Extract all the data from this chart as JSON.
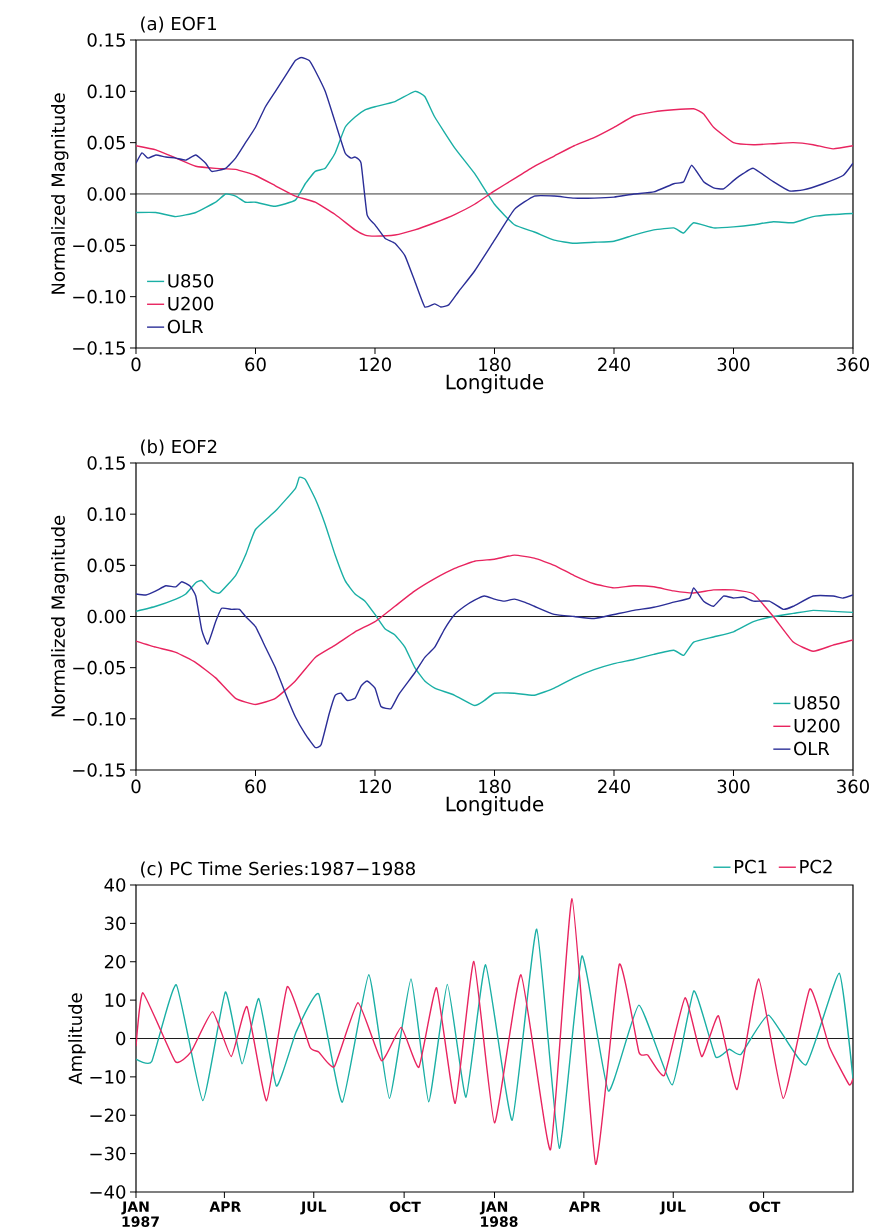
{
  "chart_data": [
    {
      "type": "line",
      "title": "(a) EOF1",
      "xlabel": "Longitude",
      "ylabel": "Normalized Magnitude",
      "xlim": [
        0,
        360
      ],
      "xticks": [
        0,
        60,
        120,
        180,
        240,
        300,
        360
      ],
      "ylim": [
        -0.15,
        0.15
      ],
      "yticks": [
        {
          "value": -0.15,
          "label": "−0.15"
        },
        {
          "value": -0.1,
          "label": "−0.10"
        },
        {
          "value": -0.05,
          "label": "−0.05"
        },
        {
          "value": 0,
          "label": "0.00"
        },
        {
          "value": 0.05,
          "label": "0.05"
        },
        {
          "value": 0.1,
          "label": "0.10"
        },
        {
          "value": 0.15,
          "label": "0.15"
        }
      ],
      "legend": "bottom left",
      "ref_lines": [
        {
          "axis": "y",
          "value": 0,
          "color": "#000000"
        }
      ],
      "series": [
        {
          "name": "U850",
          "color": "#1aafa5",
          "x": [
            0,
            10,
            20,
            30,
            40,
            45,
            50,
            55,
            60,
            70,
            80,
            85,
            90,
            95,
            100,
            105,
            110,
            115,
            120,
            130,
            140,
            145,
            150,
            160,
            170,
            180,
            190,
            200,
            210,
            220,
            230,
            240,
            250,
            260,
            270,
            275,
            280,
            290,
            300,
            310,
            320,
            330,
            340,
            350,
            360
          ],
          "values": [
            -0.018,
            -0.018,
            -0.022,
            -0.018,
            -0.008,
            0.0,
            -0.002,
            -0.008,
            -0.008,
            -0.012,
            -0.006,
            0.01,
            0.022,
            0.025,
            0.04,
            0.065,
            0.075,
            0.082,
            0.085,
            0.09,
            0.1,
            0.095,
            0.075,
            0.045,
            0.02,
            -0.01,
            -0.03,
            -0.037,
            -0.045,
            -0.048,
            -0.047,
            -0.046,
            -0.04,
            -0.035,
            -0.033,
            -0.038,
            -0.028,
            -0.033,
            -0.032,
            -0.03,
            -0.027,
            -0.028,
            -0.022,
            -0.02,
            -0.019
          ]
        },
        {
          "name": "U200",
          "color": "#e8245f",
          "x": [
            0,
            10,
            20,
            30,
            40,
            50,
            60,
            70,
            80,
            90,
            100,
            110,
            115,
            120,
            130,
            140,
            150,
            160,
            170,
            180,
            190,
            200,
            210,
            220,
            230,
            240,
            250,
            260,
            270,
            280,
            285,
            290,
            300,
            310,
            320,
            330,
            340,
            350,
            360
          ],
          "values": [
            0.047,
            0.043,
            0.035,
            0.027,
            0.025,
            0.024,
            0.018,
            0.008,
            -0.002,
            -0.008,
            -0.02,
            -0.035,
            -0.04,
            -0.041,
            -0.04,
            -0.035,
            -0.028,
            -0.02,
            -0.01,
            0.003,
            0.015,
            0.027,
            0.037,
            0.047,
            0.055,
            0.065,
            0.076,
            0.08,
            0.082,
            0.083,
            0.078,
            0.065,
            0.05,
            0.048,
            0.049,
            0.05,
            0.048,
            0.044,
            0.047
          ]
        },
        {
          "name": "OLR",
          "color": "#2b2e97",
          "x": [
            0,
            3,
            6,
            10,
            15,
            20,
            25,
            30,
            35,
            38,
            45,
            50,
            55,
            60,
            65,
            70,
            75,
            80,
            83,
            87,
            90,
            95,
            100,
            105,
            108,
            110,
            113,
            116,
            120,
            125,
            130,
            135,
            140,
            145,
            150,
            153,
            157,
            162,
            170,
            180,
            190,
            200,
            210,
            220,
            230,
            240,
            250,
            260,
            270,
            275,
            279,
            285,
            290,
            295,
            300,
            305,
            310,
            320,
            328,
            335,
            345,
            355,
            360
          ],
          "values": [
            0.03,
            0.04,
            0.035,
            0.038,
            0.036,
            0.035,
            0.033,
            0.038,
            0.03,
            0.022,
            0.025,
            0.035,
            0.05,
            0.065,
            0.085,
            0.1,
            0.115,
            0.13,
            0.133,
            0.13,
            0.12,
            0.1,
            0.07,
            0.04,
            0.035,
            0.036,
            0.03,
            -0.02,
            -0.03,
            -0.043,
            -0.048,
            -0.06,
            -0.085,
            -0.11,
            -0.107,
            -0.11,
            -0.108,
            -0.095,
            -0.075,
            -0.045,
            -0.015,
            -0.002,
            -0.002,
            -0.004,
            -0.004,
            -0.003,
            0.0,
            0.002,
            0.01,
            0.012,
            0.028,
            0.012,
            0.006,
            0.005,
            0.013,
            0.02,
            0.025,
            0.012,
            0.003,
            0.004,
            0.01,
            0.018,
            0.03
          ]
        }
      ]
    },
    {
      "type": "line",
      "title": "(b) EOF2",
      "xlabel": "Longitude",
      "ylabel": "Normalized Magnitude",
      "xlim": [
        0,
        360
      ],
      "xticks": [
        0,
        60,
        120,
        180,
        240,
        300,
        360
      ],
      "ylim": [
        -0.15,
        0.15
      ],
      "yticks": [
        {
          "value": -0.15,
          "label": "−0.15"
        },
        {
          "value": -0.1,
          "label": "−0.10"
        },
        {
          "value": -0.05,
          "label": "−0.05"
        },
        {
          "value": 0,
          "label": "0.00"
        },
        {
          "value": 0.05,
          "label": "0.05"
        },
        {
          "value": 0.1,
          "label": "0.10"
        },
        {
          "value": 0.15,
          "label": "0.15"
        }
      ],
      "legend": "bottom right",
      "ref_lines": [
        {
          "axis": "y",
          "value": 0,
          "color": "#000000"
        }
      ],
      "series": [
        {
          "name": "U850",
          "color": "#1aafa5",
          "x": [
            0,
            10,
            20,
            25,
            30,
            33,
            38,
            42,
            50,
            55,
            60,
            70,
            80,
            82,
            85,
            90,
            95,
            100,
            105,
            110,
            115,
            120,
            125,
            130,
            135,
            140,
            145,
            150,
            160,
            170,
            175,
            180,
            190,
            200,
            210,
            220,
            230,
            240,
            250,
            260,
            270,
            275,
            280,
            290,
            300,
            310,
            320,
            330,
            340,
            350,
            360
          ],
          "values": [
            0.005,
            0.01,
            0.017,
            0.022,
            0.033,
            0.035,
            0.025,
            0.023,
            0.04,
            0.06,
            0.085,
            0.103,
            0.125,
            0.136,
            0.134,
            0.115,
            0.09,
            0.06,
            0.035,
            0.022,
            0.015,
            0.002,
            -0.012,
            -0.018,
            -0.03,
            -0.05,
            -0.063,
            -0.07,
            -0.077,
            -0.087,
            -0.082,
            -0.075,
            -0.075,
            -0.077,
            -0.07,
            -0.06,
            -0.052,
            -0.046,
            -0.042,
            -0.037,
            -0.033,
            -0.038,
            -0.025,
            -0.02,
            -0.015,
            -0.005,
            0.0,
            0.003,
            0.006,
            0.005,
            0.004
          ]
        },
        {
          "name": "U200",
          "color": "#e8245f",
          "x": [
            0,
            10,
            20,
            30,
            40,
            50,
            60,
            70,
            80,
            90,
            100,
            110,
            120,
            130,
            140,
            150,
            160,
            170,
            180,
            190,
            200,
            210,
            220,
            230,
            240,
            250,
            260,
            270,
            280,
            290,
            300,
            310,
            320,
            330,
            340,
            350,
            360
          ],
          "values": [
            -0.024,
            -0.03,
            -0.035,
            -0.045,
            -0.06,
            -0.08,
            -0.086,
            -0.08,
            -0.063,
            -0.04,
            -0.028,
            -0.015,
            -0.005,
            0.01,
            0.025,
            0.037,
            0.047,
            0.054,
            0.056,
            0.06,
            0.057,
            0.05,
            0.04,
            0.032,
            0.028,
            0.03,
            0.029,
            0.025,
            0.023,
            0.026,
            0.026,
            0.022,
            0.0,
            -0.025,
            -0.034,
            -0.028,
            -0.023
          ]
        },
        {
          "name": "OLR",
          "color": "#2b2e97",
          "x": [
            0,
            5,
            10,
            15,
            20,
            23,
            27,
            30,
            33,
            36,
            40,
            43,
            48,
            52,
            55,
            60,
            65,
            70,
            75,
            80,
            85,
            90,
            93,
            97,
            100,
            103,
            106,
            110,
            113,
            116,
            120,
            123,
            128,
            132,
            140,
            145,
            150,
            155,
            160,
            165,
            170,
            175,
            180,
            185,
            190,
            195,
            200,
            210,
            220,
            230,
            240,
            250,
            260,
            270,
            278,
            280,
            285,
            290,
            295,
            300,
            305,
            310,
            318,
            325,
            330,
            340,
            350,
            355,
            360
          ],
          "values": [
            0.022,
            0.021,
            0.025,
            0.03,
            0.029,
            0.034,
            0.03,
            0.02,
            -0.013,
            -0.027,
            -0.005,
            0.008,
            0.007,
            0.007,
            0.0,
            -0.01,
            -0.03,
            -0.05,
            -0.075,
            -0.098,
            -0.115,
            -0.128,
            -0.125,
            -0.095,
            -0.077,
            -0.075,
            -0.082,
            -0.08,
            -0.068,
            -0.063,
            -0.07,
            -0.088,
            -0.09,
            -0.076,
            -0.055,
            -0.04,
            -0.03,
            -0.012,
            0.002,
            0.01,
            0.016,
            0.02,
            0.017,
            0.015,
            0.017,
            0.014,
            0.01,
            0.002,
            0.0,
            -0.002,
            0.002,
            0.006,
            0.009,
            0.014,
            0.018,
            0.028,
            0.015,
            0.01,
            0.02,
            0.018,
            0.019,
            0.015,
            0.015,
            0.007,
            0.01,
            0.02,
            0.02,
            0.018,
            0.021
          ]
        }
      ]
    },
    {
      "type": "line",
      "title": "(c) PC Time Series:1987−1988",
      "ylabel": "Amplitude",
      "xlim": [
        "1987-01-01",
        "1988-12-31"
      ],
      "xticks": [
        {
          "value": "1987-01-01",
          "label": "JAN 1987"
        },
        {
          "value": "1987-04-01",
          "label": "APR"
        },
        {
          "value": "1987-07-01",
          "label": "JUL"
        },
        {
          "value": "1987-10-01",
          "label": "OCT"
        },
        {
          "value": "1988-01-01",
          "label": "JAN 1988"
        },
        {
          "value": "1988-04-01",
          "label": "APR"
        },
        {
          "value": "1988-07-01",
          "label": "JUL"
        },
        {
          "value": "1988-10-01",
          "label": "OCT"
        }
      ],
      "ylim": [
        -40,
        40
      ],
      "yticks": [
        {
          "value": -40,
          "label": "−40"
        },
        {
          "value": -30,
          "label": "−30"
        },
        {
          "value": -20,
          "label": "−20"
        },
        {
          "value": -10,
          "label": "−10"
        },
        {
          "value": 0,
          "label": "0"
        },
        {
          "value": 10,
          "label": "10"
        },
        {
          "value": 20,
          "label": "20"
        },
        {
          "value": 30,
          "label": "30"
        },
        {
          "value": 40,
          "label": "40"
        }
      ],
      "legend": "top right",
      "ref_lines": [
        {
          "axis": "y",
          "value": 0,
          "color": "#000000"
        }
      ],
      "series": [
        {
          "name": "PC1",
          "color": "#1aafa5",
          "x": [
            "1987-01-01",
            "1987-01-17",
            "1987-02-11",
            "1987-03-10",
            "1987-04-02",
            "1987-04-19",
            "1987-05-06",
            "1987-05-24",
            "1987-06-13",
            "1987-07-06",
            "1987-07-30",
            "1987-08-26",
            "1987-09-16",
            "1987-10-08",
            "1987-10-26",
            "1987-11-14",
            "1987-12-03",
            "1987-12-23",
            "1988-01-19",
            "1988-02-13",
            "1988-03-07",
            "1988-03-30",
            "1988-04-26",
            "1988-05-27",
            "1988-06-30",
            "1988-07-22",
            "1988-08-13",
            "1988-08-27",
            "1988-09-08",
            "1988-10-06",
            "1988-11-13",
            "1988-12-17",
            "1988-12-31"
          ],
          "values": [
            -5.4,
            -6,
            14,
            -16.2,
            12.1,
            -6.6,
            10.4,
            -12.4,
            1.7,
            11.6,
            -16.6,
            16.6,
            -15.6,
            15.5,
            -16.5,
            14.1,
            -15.3,
            19.2,
            -21.3,
            28.5,
            -28.6,
            21.5,
            -13.7,
            8.7,
            -12.1,
            12.4,
            -4.7,
            -2.8,
            -4.1,
            6.1,
            -6.9,
            17,
            -10.5
          ]
        },
        {
          "name": "PC2",
          "color": "#e8245f",
          "x": [
            "1987-01-01",
            "1987-01-08",
            "1987-02-10",
            "1987-02-26",
            "1987-03-20",
            "1987-04-08",
            "1987-04-24",
            "1987-05-14",
            "1987-06-04",
            "1987-06-27",
            "1987-07-06",
            "1987-07-22",
            "1987-08-15",
            "1987-09-08",
            "1987-09-28",
            "1987-10-16",
            "1987-11-03",
            "1987-11-22",
            "1987-12-11",
            "1988-01-01",
            "1988-01-28",
            "1988-02-27",
            "1988-03-20",
            "1988-04-13",
            "1988-05-07",
            "1988-05-27",
            "1988-06-05",
            "1988-06-22",
            "1988-07-13",
            "1988-07-30",
            "1988-08-16",
            "1988-09-04",
            "1988-09-26",
            "1988-10-21",
            "1988-11-17",
            "1988-12-07",
            "1988-12-27",
            "1988-12-31"
          ],
          "values": [
            -2,
            11.9,
            -6,
            -3.5,
            7,
            -4.7,
            8.3,
            -16.2,
            13.5,
            -2.2,
            -3.5,
            -7.3,
            9.3,
            -5.8,
            2.9,
            -7.5,
            13.2,
            -16.9,
            20.1,
            -22,
            16.6,
            -29,
            36.4,
            -32.8,
            19.3,
            -3.5,
            -4.3,
            -9.6,
            10.6,
            -4.7,
            5.9,
            -13.3,
            15.5,
            -15.6,
            12.9,
            -2.2,
            -12,
            -10.5
          ]
        }
      ]
    }
  ]
}
